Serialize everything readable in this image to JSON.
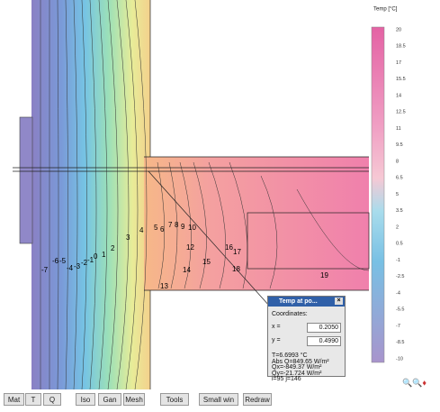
{
  "legend": {
    "title": "Temp [°C]",
    "ticks": [
      20,
      18.5,
      17,
      15.5,
      14,
      12.5,
      11,
      9.5,
      8,
      6.5,
      5,
      3.5,
      2,
      0.5,
      -1,
      -2.5,
      -4,
      -5.5,
      -7,
      -8.5,
      -10
    ]
  },
  "contour_labels": [
    -7,
    -6,
    -5,
    -4,
    -3,
    -2,
    -1,
    0,
    1,
    2,
    3,
    4,
    5,
    6,
    7,
    8,
    9,
    10,
    12,
    14,
    15,
    16,
    17,
    18,
    19,
    13
  ],
  "popup": {
    "title": "Temp at po...",
    "close": "×",
    "coordinates": "Coordinates:",
    "x_label": "x =",
    "x_value": "0.2050",
    "y_label": "y =",
    "y_value": "0.4990",
    "results": [
      "T=6.6993 °C",
      "Abs Q=849.65 W/m²",
      "Qx=-849.37 W/m²",
      "Qy=-21.724 W/m²",
      "i=95 j=146"
    ]
  },
  "toolbar": [
    "Mat",
    "T",
    "Q",
    "Iso",
    "Gan",
    "Mesh",
    "Tools",
    "Small win",
    "Redraw"
  ]
}
